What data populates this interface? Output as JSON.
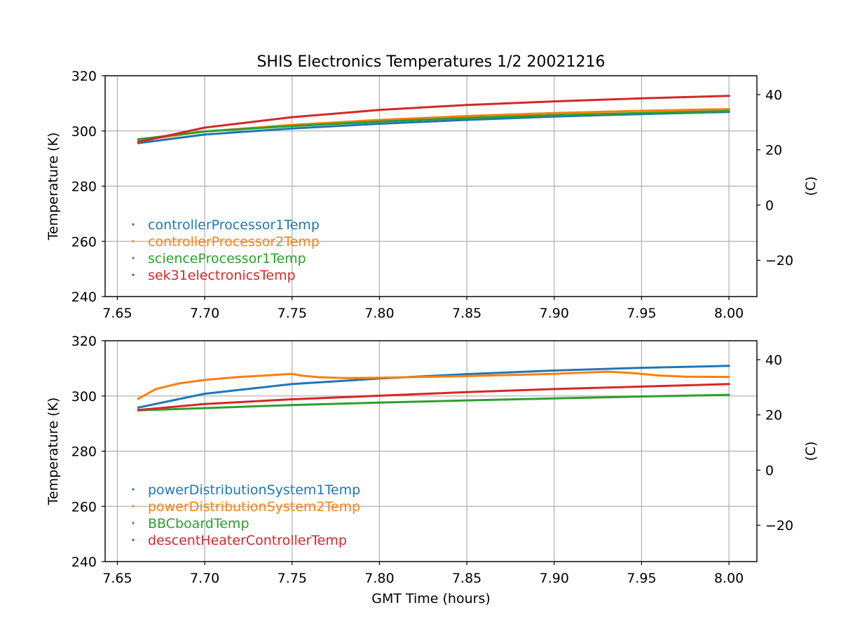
{
  "figure": {
    "title": "SHIS Electronics Temperatures 1/2 20021216",
    "xlabel": "GMT Time (hours)"
  },
  "colors": {
    "blue": "#1f77b4",
    "orange": "#ff7f0e",
    "green": "#2ca02c",
    "red": "#d62728",
    "grid": "#b0b0b0"
  },
  "chart_data": [
    {
      "type": "scatter",
      "ylabel": "Temperature (K)",
      "y2label": "(C)",
      "xlim": [
        7.643,
        8.016
      ],
      "ylim": [
        240,
        320
      ],
      "y2lim": [
        -33.15,
        46.85
      ],
      "xticks": [
        "7.65",
        "7.70",
        "7.75",
        "7.80",
        "7.85",
        "7.90",
        "7.95",
        "8.00"
      ],
      "yticks": [
        "240",
        "260",
        "280",
        "300",
        "320"
      ],
      "y2ticks": [
        "−20",
        "0",
        "20",
        "40"
      ],
      "grid": true,
      "legend_position": "lower-left",
      "series": [
        {
          "name": "controllerProcessor1Temp",
          "color": "#1f77b4",
          "x": [
            7.662,
            7.7,
            7.75,
            7.8,
            7.85,
            7.9,
            7.95,
            8.0
          ],
          "y": [
            295.6,
            298.7,
            300.9,
            302.6,
            304.0,
            305.2,
            306.1,
            306.9
          ]
        },
        {
          "name": "controllerProcessor2Temp",
          "color": "#ff7f0e",
          "x": [
            7.662,
            7.7,
            7.75,
            7.8,
            7.85,
            7.9,
            7.95,
            8.0
          ],
          "y": [
            296.5,
            299.8,
            302.2,
            304.0,
            305.4,
            306.5,
            307.3,
            307.9
          ]
        },
        {
          "name": "scienceProcessor1Temp",
          "color": "#2ca02c",
          "x": [
            7.662,
            7.7,
            7.75,
            7.8,
            7.85,
            7.9,
            7.95,
            8.0
          ],
          "y": [
            297.0,
            299.8,
            301.8,
            303.4,
            304.7,
            305.7,
            306.5,
            307.2
          ]
        },
        {
          "name": "sek31electronicsTemp",
          "color": "#d62728",
          "x": [
            7.662,
            7.7,
            7.75,
            7.8,
            7.85,
            7.9,
            7.95,
            8.0
          ],
          "y": [
            296.0,
            301.2,
            305.0,
            307.6,
            309.4,
            310.7,
            311.8,
            312.7
          ]
        }
      ]
    },
    {
      "type": "scatter",
      "ylabel": "Temperature (K)",
      "y2label": "(C)",
      "xlim": [
        7.643,
        8.016
      ],
      "ylim": [
        240,
        320
      ],
      "y2lim": [
        -33.15,
        46.85
      ],
      "xticks": [
        "7.65",
        "7.70",
        "7.75",
        "7.80",
        "7.85",
        "7.90",
        "7.95",
        "8.00"
      ],
      "yticks": [
        "240",
        "260",
        "280",
        "300",
        "320"
      ],
      "y2ticks": [
        "−20",
        "0",
        "20",
        "40"
      ],
      "grid": true,
      "legend_position": "lower-left",
      "series": [
        {
          "name": "powerDistributionSystem1Temp",
          "color": "#1f77b4",
          "x": [
            7.662,
            7.7,
            7.75,
            7.8,
            7.85,
            7.9,
            7.95,
            8.0
          ],
          "y": [
            295.8,
            300.8,
            304.3,
            306.3,
            307.9,
            309.2,
            310.2,
            310.9
          ]
        },
        {
          "name": "powerDistributionSystem2Temp",
          "color": "#ff7f0e",
          "x": [
            7.662,
            7.672,
            7.685,
            7.7,
            7.72,
            7.74,
            7.75,
            7.755,
            7.765,
            7.78,
            7.8,
            7.85,
            7.9,
            7.93,
            7.945,
            7.96,
            7.975,
            8.0
          ],
          "y": [
            299.0,
            302.5,
            304.5,
            305.8,
            306.9,
            307.6,
            308.0,
            307.4,
            306.8,
            306.5,
            306.6,
            307.2,
            308.0,
            308.8,
            308.3,
            307.4,
            307.0,
            306.9
          ]
        },
        {
          "name": "BBCboardTemp",
          "color": "#2ca02c",
          "x": [
            7.662,
            7.7,
            7.75,
            7.8,
            7.85,
            7.9,
            7.95,
            8.0
          ],
          "y": [
            294.8,
            295.6,
            296.7,
            297.6,
            298.4,
            299.1,
            299.8,
            300.4
          ]
        },
        {
          "name": "descentHeaterControllerTemp",
          "color": "#d62728",
          "x": [
            7.662,
            7.7,
            7.75,
            7.8,
            7.85,
            7.9,
            7.95,
            8.0
          ],
          "y": [
            294.9,
            297.1,
            298.8,
            300.1,
            301.4,
            302.5,
            303.4,
            304.3
          ]
        }
      ]
    }
  ]
}
